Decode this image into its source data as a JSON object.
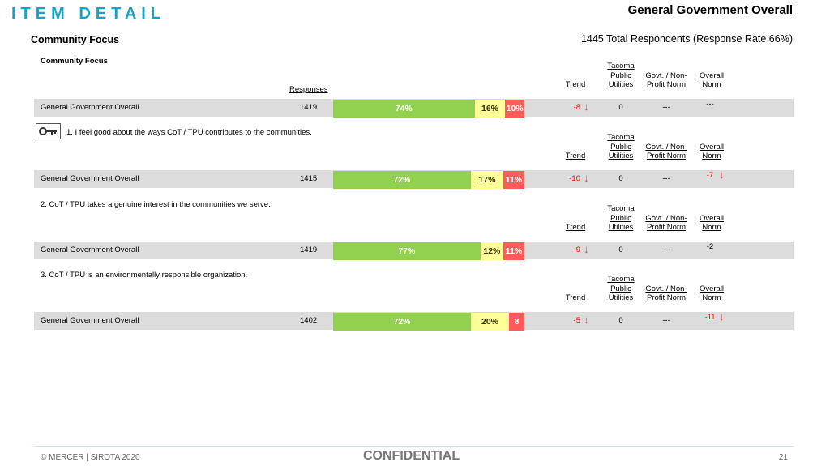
{
  "header": {
    "page_title": "ITEM DETAIL",
    "report_title": "General Government Overall",
    "section_title": "Community Focus",
    "respondents": "1445 Total Respondents (Response Rate  66%)"
  },
  "topic_label": "Community Focus",
  "responses_header": "Responses",
  "column_headers": {
    "trend": "Trend",
    "tpu": [
      "Tacoma",
      "Public",
      "Utilities"
    ],
    "govt": [
      "Govt. / Non-",
      "Profit Norm"
    ],
    "overall": [
      "Overall",
      "Norm"
    ]
  },
  "rows": [
    {
      "question": "",
      "label": "General Government Overall",
      "responses": "1419",
      "favorable": 74,
      "favorable_label": "74%",
      "neutral": 16,
      "neutral_label": "16%",
      "unfavorable": 10,
      "unfavorable_label": "10%",
      "trend": "-8",
      "tpu": "0",
      "govt": "---",
      "overall": "---",
      "trend_arrow": "down",
      "overall_arrow": "none"
    },
    {
      "question": "1. I feel good about the ways CoT / TPU contributes to the communities.",
      "label": "General Government Overall",
      "responses": "1415",
      "favorable": 72,
      "favorable_label": "72%",
      "neutral": 17,
      "neutral_label": "17%",
      "unfavorable": 11,
      "unfavorable_label": "11%",
      "trend": "-10",
      "tpu": "0",
      "govt": "---",
      "overall": "-7",
      "trend_arrow": "down",
      "overall_arrow": "down"
    },
    {
      "question": "2. CoT / TPU takes a genuine interest in the communities we serve.",
      "label": "General Government Overall",
      "responses": "1419",
      "favorable": 77,
      "favorable_label": "77%",
      "neutral": 12,
      "neutral_label": "12%",
      "unfavorable": 11,
      "unfavorable_label": "11%",
      "trend": "-9",
      "tpu": "0",
      "govt": "---",
      "overall": "-2",
      "trend_arrow": "down",
      "overall_arrow": "none"
    },
    {
      "question": "3. CoT / TPU is an environmentally responsible organization.",
      "label": "General Government Overall",
      "responses": "1402",
      "favorable": 72,
      "favorable_label": "72%",
      "neutral": 20,
      "neutral_label": "20%",
      "unfavorable": 8,
      "unfavorable_label": "8",
      "trend": "-5",
      "tpu": "0",
      "govt": "---",
      "overall": "-11",
      "trend_arrow": "down",
      "overall_arrow": "down"
    }
  ],
  "footer": {
    "copyright": "© MERCER | SIROTA 2020",
    "confidential": "CONFIDENTIAL",
    "page_number": "21"
  },
  "colors": {
    "title_accent": "#1aa3c8",
    "favorable": "#92d050",
    "neutral": "#ffff99",
    "unfavorable": "#ff5b5b",
    "negative_text": "#ff0000"
  }
}
